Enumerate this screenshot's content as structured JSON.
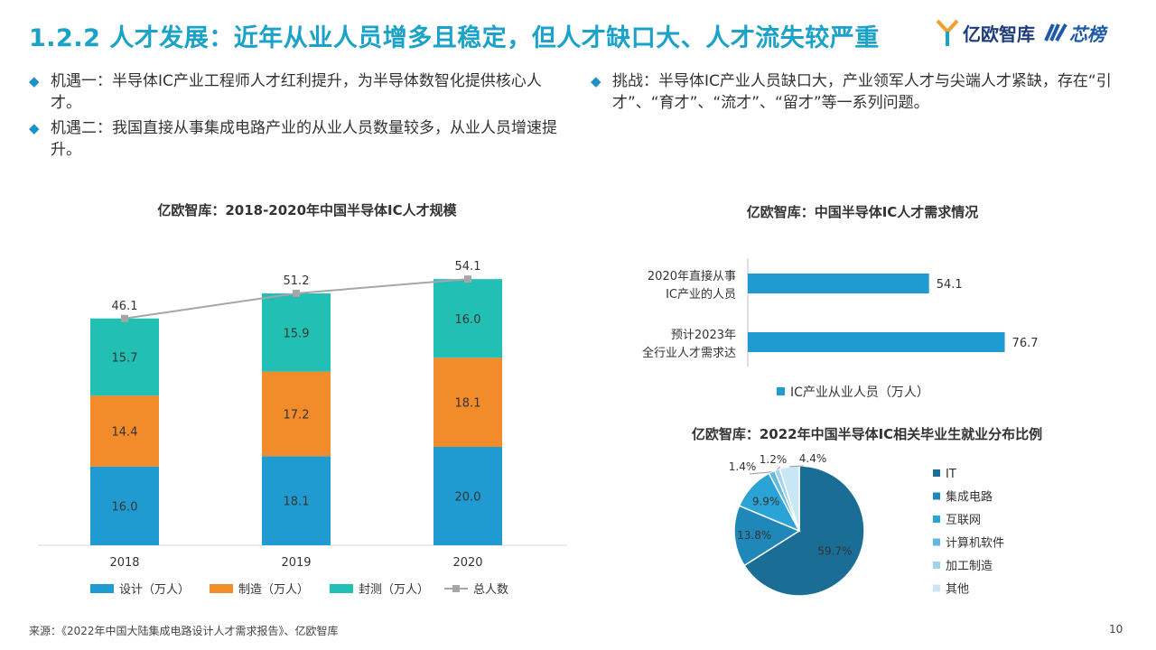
{
  "header": {
    "title": "1.2.2 人才发展：近年从业人员增多且稳定，但人才缺口大、人才流失较严重",
    "logo_text": "亿欧智库",
    "partner_logo_text": "芯榜"
  },
  "bullets": {
    "b1": "机遇一：半导体IC产业工程师人才红利提升，为半导体数智化提供核心人才。",
    "b2": "机遇二：我国直接从事集成电路产业的从业人员数量较多，从业人员增速提升。",
    "b3": "挑战：半导体IC产业人员缺口大，产业领军人才与尖端人才紧缺，存在“引才”、“育才”、“流才”、“留才”等一系列问题。"
  },
  "chart_titles": {
    "c1": "亿欧智库：2018-2020年中国半导体IC人才规模",
    "c2": "亿欧智库：中国半导体IC人才需求情况",
    "c3": "亿欧智库：2022年中国半导体IC相关毕业生就业分布比例"
  },
  "chart_data": [
    {
      "type": "bar",
      "stacked": true,
      "categories": [
        "2018",
        "2019",
        "2020"
      ],
      "series": [
        {
          "name": "设计（万人）",
          "values": [
            16.0,
            18.1,
            20.0
          ],
          "color": "#1f9bd1"
        },
        {
          "name": "制造（万人）",
          "values": [
            14.4,
            17.2,
            18.1
          ],
          "color": "#f28b2a"
        },
        {
          "name": "封测（万人）",
          "values": [
            15.7,
            15.9,
            16.0
          ],
          "color": "#22bfb5"
        }
      ],
      "line": {
        "name": "总人数",
        "values": [
          46.1,
          51.2,
          54.1
        ],
        "color": "#a6a6a6"
      },
      "legend": "bottom"
    },
    {
      "type": "bar",
      "orientation": "horizontal",
      "categories": [
        "2020年直接从事IC产业的人员",
        "预计2023年全行业人才需求达"
      ],
      "category_lines": [
        [
          "2020年直接从事",
          "IC产业的人员"
        ],
        [
          "预计2023年",
          "全行业人才需求达"
        ]
      ],
      "series": [
        {
          "name": "IC产业从业人员（万人）",
          "values": [
            54.1,
            76.7
          ],
          "color": "#1f9bd1"
        }
      ],
      "legend": "bottom"
    },
    {
      "type": "pie",
      "labels": [
        "IT",
        "集成电路",
        "互联网",
        "计算机软件",
        "加工制造",
        "其他"
      ],
      "values": [
        59.7,
        13.8,
        9.9,
        1.4,
        1.2,
        4.4
      ],
      "value_labels": [
        "59.7%",
        "13.8%",
        "9.9%",
        "1.4%",
        "1.2%",
        "4.4%"
      ],
      "colors": [
        "#1a6e96",
        "#1f88b8",
        "#2aa3d6",
        "#62b8de",
        "#9fd3ec",
        "#c9e6f4"
      ],
      "legend": "right"
    }
  ],
  "footer": {
    "source": "来源：《2022年中国大陆集成电路设计人才需求报告》、亿欧智库",
    "page": "10"
  }
}
